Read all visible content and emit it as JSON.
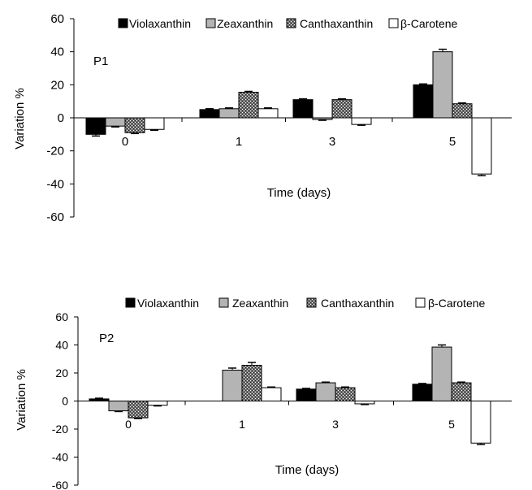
{
  "legend": {
    "violaxanthin": "Violaxanthin",
    "zeaxanthin": "Zeaxanthin",
    "canthaxanthin": "Canthaxanthin",
    "beta_carotene": "β-Carotene"
  },
  "chart_data": [
    {
      "type": "bar",
      "panel_label": "P1",
      "categories": [
        "0",
        "1",
        "3",
        "5"
      ],
      "xlabel": "Time (days)",
      "ylabel": "Variation %",
      "ylim": [
        -60,
        60
      ],
      "yticks": [
        "60",
        "40",
        "20",
        "0",
        "-20",
        "-40",
        "-60"
      ],
      "legend_position": "top",
      "series": [
        {
          "name": "Violaxanthin",
          "values": [
            -10,
            5,
            11,
            20
          ],
          "errors": [
            1,
            0.5,
            0.5,
            0.5
          ]
        },
        {
          "name": "Zeaxanthin",
          "values": [
            -5,
            5.5,
            -1,
            40
          ],
          "errors": [
            0.5,
            0.5,
            0.5,
            1.5
          ]
        },
        {
          "name": "Canthaxanthin",
          "values": [
            -9,
            15.5,
            11,
            8.5
          ],
          "errors": [
            0.5,
            0.5,
            0.5,
            0.5
          ]
        },
        {
          "name": "β-Carotene",
          "values": [
            -7,
            5.5,
            -4,
            -34
          ],
          "errors": [
            0.5,
            0.5,
            0.5,
            1
          ]
        }
      ]
    },
    {
      "type": "bar",
      "panel_label": "P2",
      "categories": [
        "0",
        "1",
        "3",
        "5"
      ],
      "xlabel": "Time (days)",
      "ylabel": "Variation %",
      "ylim": [
        -60,
        60
      ],
      "yticks": [
        "60",
        "40",
        "20",
        "0",
        "-20",
        "-40",
        "-60"
      ],
      "legend_position": "top",
      "series": [
        {
          "name": "Violaxanthin",
          "values": [
            1.5,
            0,
            8.5,
            12
          ],
          "errors": [
            0.5,
            0,
            0.5,
            0.5
          ]
        },
        {
          "name": "Zeaxanthin",
          "values": [
            -7,
            22,
            13,
            38.5
          ],
          "errors": [
            0.5,
            1.5,
            0.5,
            1.5
          ]
        },
        {
          "name": "Canthaxanthin",
          "values": [
            -12,
            25.5,
            9.5,
            13
          ],
          "errors": [
            0.5,
            2,
            0.5,
            0.5
          ]
        },
        {
          "name": "β-Carotene",
          "values": [
            -3,
            9.5,
            -2,
            -30
          ],
          "errors": [
            0.5,
            0.5,
            0.5,
            1
          ]
        }
      ]
    }
  ]
}
